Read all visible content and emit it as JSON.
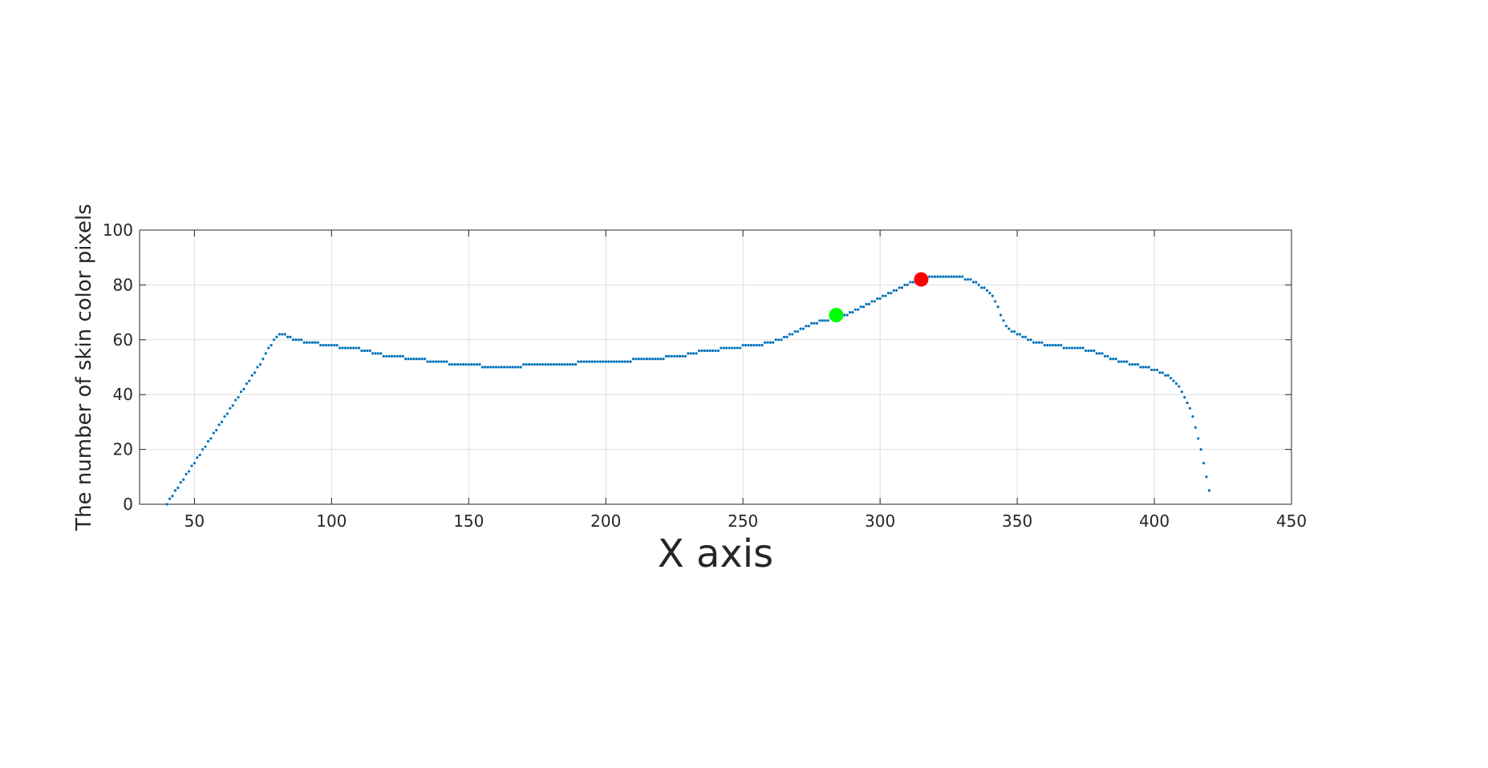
{
  "chart_data": {
    "type": "scatter",
    "title": "",
    "xlabel": "X axis",
    "ylabel": "The number of skin color pixels",
    "xlim": [
      30,
      450
    ],
    "ylim": [
      0,
      100
    ],
    "xticks": [
      50,
      100,
      150,
      200,
      250,
      300,
      350,
      400,
      450
    ],
    "yticks": [
      0,
      20,
      40,
      60,
      80,
      100
    ],
    "grid": true,
    "marker_color": "#0072BD",
    "series": [
      {
        "x": [
          40,
          42,
          44,
          46,
          48,
          50,
          52,
          54,
          56,
          58,
          60,
          62,
          64,
          66,
          68,
          70,
          72,
          74,
          76,
          78,
          80,
          82,
          84,
          86,
          88,
          90,
          92,
          94,
          96,
          98,
          100,
          104,
          108,
          112,
          116,
          120,
          124,
          128,
          132,
          136,
          140,
          144,
          148,
          152,
          156,
          160,
          164,
          168,
          172,
          176,
          180,
          184,
          188,
          192,
          196,
          200,
          204,
          208,
          212,
          216,
          220,
          224,
          228,
          232,
          236,
          240,
          244,
          248,
          252,
          256,
          260,
          264,
          268,
          272,
          276,
          280,
          284,
          288,
          292,
          296,
          300,
          304,
          308,
          312,
          316,
          320,
          324,
          328,
          332,
          336,
          340,
          342,
          344,
          346,
          348,
          350,
          352,
          354,
          356,
          358,
          360,
          364,
          368,
          372,
          376,
          380,
          384,
          388,
          392,
          396,
          400,
          404,
          406,
          408,
          410,
          412,
          414,
          416,
          418,
          420
        ],
        "y": [
          0,
          3,
          6,
          9,
          12,
          15,
          18,
          21,
          24,
          27,
          30,
          33,
          36,
          39,
          42,
          45,
          48,
          51,
          55,
          58,
          61,
          62,
          61,
          60,
          60,
          59,
          59,
          59,
          58,
          58,
          58,
          57,
          57,
          56,
          55,
          54,
          54,
          53,
          53,
          52,
          52,
          51,
          51,
          51,
          50,
          50,
          50,
          50,
          51,
          51,
          51,
          51,
          51,
          52,
          52,
          52,
          52,
          52,
          53,
          53,
          53,
          54,
          54,
          55,
          56,
          56,
          57,
          57,
          58,
          58,
          59,
          60,
          62,
          64,
          66,
          67,
          68,
          69,
          71,
          73,
          75,
          77,
          79,
          81,
          82,
          83,
          83,
          83,
          82,
          80,
          77,
          74,
          69,
          65,
          63,
          62,
          61,
          60,
          59,
          59,
          58,
          58,
          57,
          57,
          56,
          55,
          53,
          52,
          51,
          50,
          49,
          47,
          46,
          44,
          41,
          37,
          32,
          24,
          15,
          5
        ],
        "marker": "dot"
      }
    ],
    "highlights": [
      {
        "x": 284,
        "y": 69,
        "color": "#00FF00"
      },
      {
        "x": 315,
        "y": 82,
        "color": "#FF0000"
      }
    ]
  }
}
